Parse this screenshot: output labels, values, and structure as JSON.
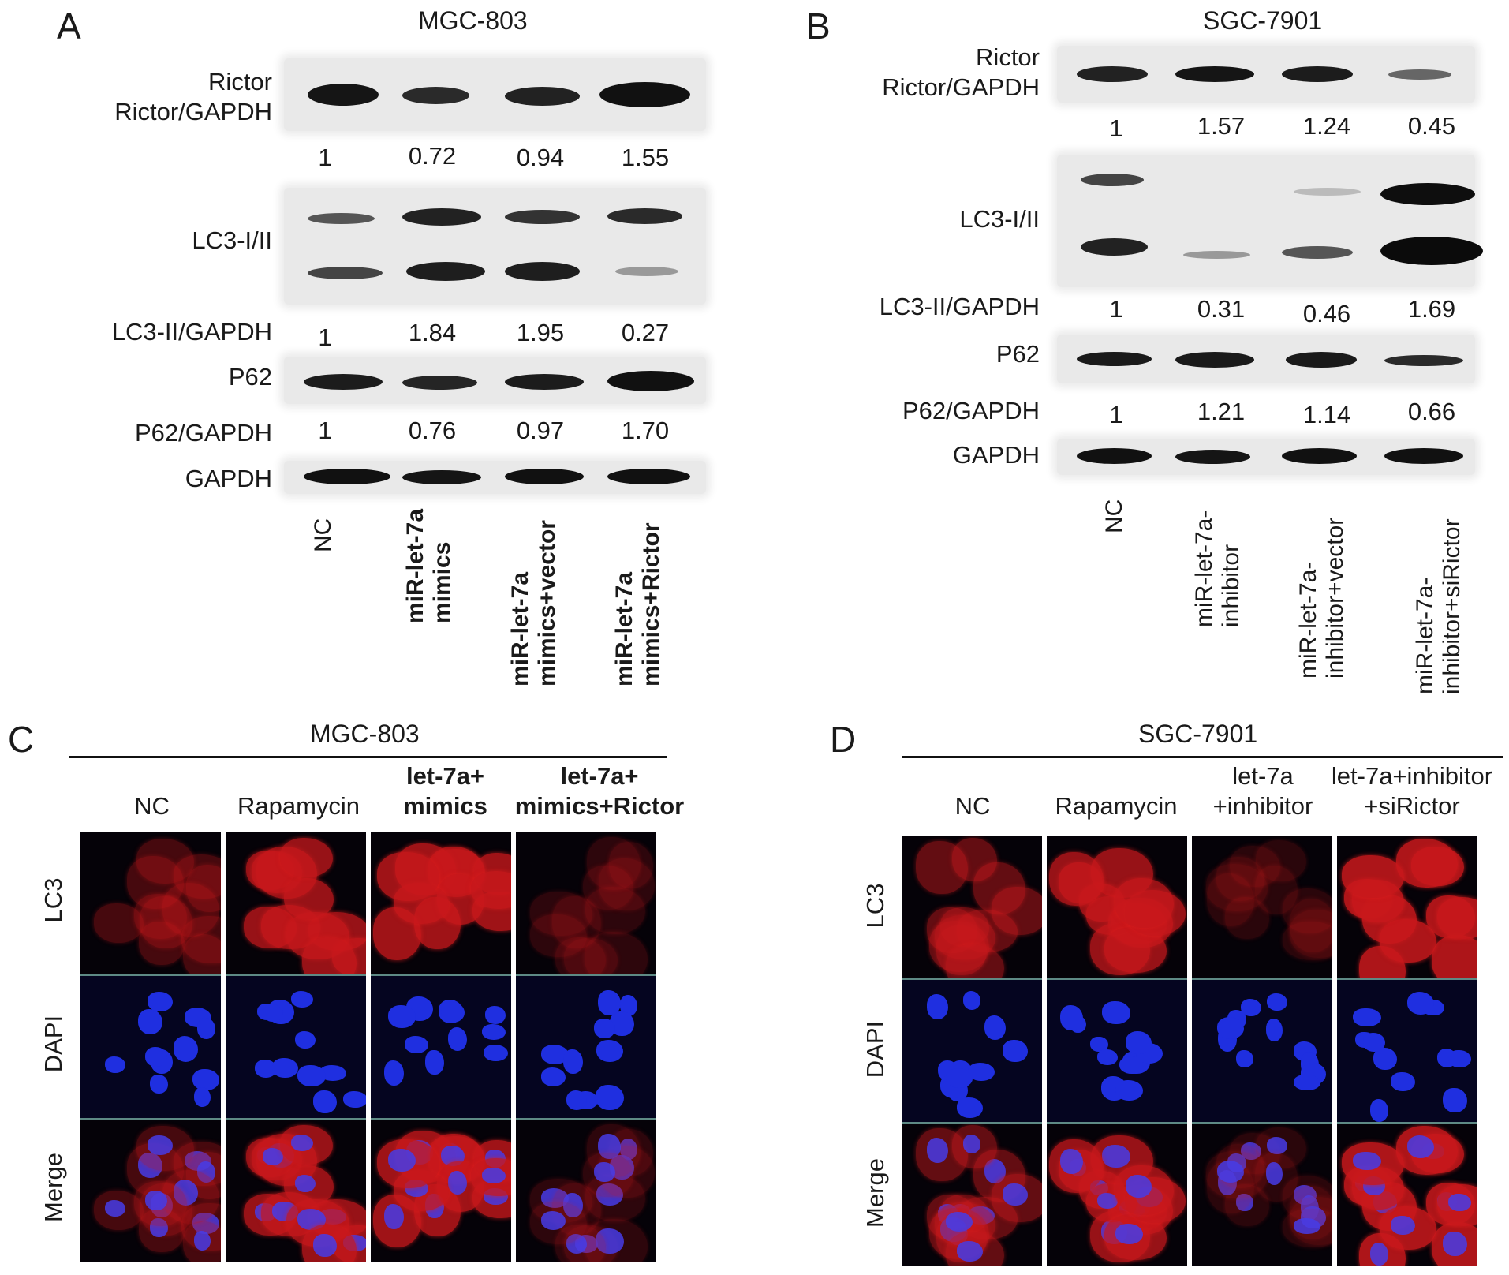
{
  "panelA": {
    "letter": "A",
    "title": "MGC-803",
    "rows": {
      "rictor": "Rictor",
      "rictor_ratio": "Rictor/GAPDH",
      "lc3": "LC3-I/II",
      "lc3_ratio": "LC3-II/GAPDH",
      "p62": "P62",
      "p62_ratio": "P62/GAPDH",
      "gapdh": "GAPDH"
    },
    "rictor_values": [
      "1",
      "0.72",
      "0.94",
      "1.55"
    ],
    "lc3_values": [
      "1",
      "1.84",
      "1.95",
      "0.27"
    ],
    "p62_values": [
      "1",
      "0.76",
      "0.97",
      "1.70"
    ],
    "lanes": [
      {
        "line1": "NC",
        "line2": ""
      },
      {
        "line1": "miR-let-7a",
        "line2": "mimics"
      },
      {
        "line1": "miR-let-7a",
        "line2": "mimics+vector"
      },
      {
        "line1": "miR-let-7a",
        "line2": "mimics+Rictor"
      }
    ]
  },
  "panelB": {
    "letter": "B",
    "title": "SGC-7901",
    "rows": {
      "rictor": "Rictor",
      "rictor_ratio": "Rictor/GAPDH",
      "lc3": "LC3-I/II",
      "lc3_ratio": "LC3-II/GAPDH",
      "p62": "P62",
      "p62_ratio": "P62/GAPDH",
      "gapdh": "GAPDH"
    },
    "rictor_values": [
      "1",
      "1.57",
      "1.24",
      "0.45"
    ],
    "lc3_values": [
      "1",
      "0.31",
      "0.46",
      "1.69"
    ],
    "p62_values": [
      "1",
      "1.21",
      "1.14",
      "0.66"
    ],
    "lanes": [
      {
        "line1": "NC",
        "line2": ""
      },
      {
        "line1": "miR-let-7a-",
        "line2": "inhibitor"
      },
      {
        "line1": "miR-let-7a-",
        "line2": "inhibitor+vector"
      },
      {
        "line1": "miR-let-7a-",
        "line2": "inhibitor+siRictor"
      }
    ]
  },
  "panelC": {
    "letter": "C",
    "title": "MGC-803",
    "columns": [
      {
        "line1": "NC",
        "line2": ""
      },
      {
        "line1": "Rapamycin",
        "line2": ""
      },
      {
        "line1": "let-7a+",
        "line2": "mimics"
      },
      {
        "line1": "let-7a+",
        "line2": "mimics+Rictor"
      }
    ],
    "rows": [
      "LC3",
      "DAPI",
      "Merge"
    ]
  },
  "panelD": {
    "letter": "D",
    "title": "SGC-7901",
    "columns": [
      {
        "line1": "NC",
        "line2": ""
      },
      {
        "line1": "Rapamycin",
        "line2": ""
      },
      {
        "line1": "let-7a",
        "line2": "+inhibitor"
      },
      {
        "line1": "let-7a+inhibitor",
        "line2": "+siRictor"
      }
    ],
    "rows": [
      "LC3",
      "DAPI",
      "Merge"
    ]
  },
  "colors": {
    "band": "#111111",
    "lc3": "#c8181c",
    "dapi": "#1f2fe0",
    "panel_bg": "#050208"
  }
}
